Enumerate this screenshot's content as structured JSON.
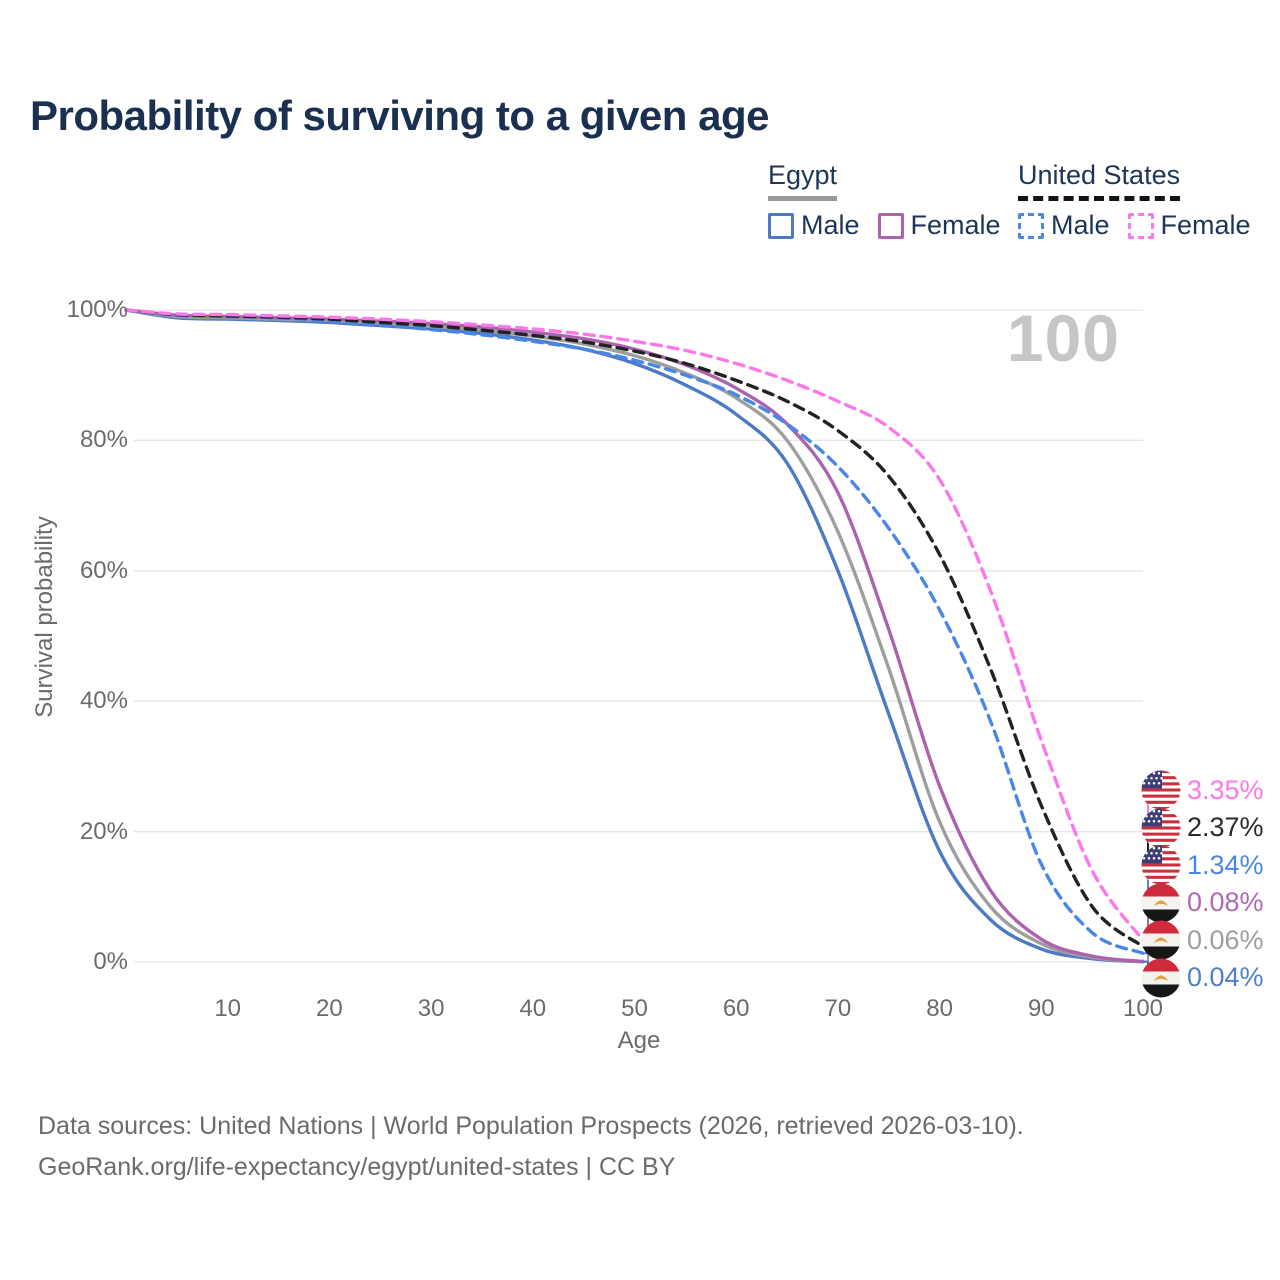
{
  "title": "Probability of surviving to a given age",
  "age_counter": "100",
  "legend": {
    "groups": [
      {
        "country": "Egypt",
        "line_style": "solid",
        "underline_color": "#9a9a9a",
        "items": [
          {
            "label": "Male",
            "color": "#4e79c4"
          },
          {
            "label": "Female",
            "color": "#ab63ad"
          }
        ]
      },
      {
        "country": "United States",
        "line_style": "dashed",
        "underline_color": "#141414",
        "items": [
          {
            "label": "Male",
            "color": "#4a86e8"
          },
          {
            "label": "Female",
            "color": "#fb78e8"
          }
        ]
      }
    ]
  },
  "axes": {
    "x_label": "Age",
    "y_label": "Survival probability",
    "x_ticks": [
      10,
      20,
      30,
      40,
      50,
      60,
      70,
      80,
      90,
      100
    ],
    "y_ticks": [
      {
        "value": 0,
        "label": "0%"
      },
      {
        "value": 20,
        "label": "20%"
      },
      {
        "value": 40,
        "label": "40%"
      },
      {
        "value": 60,
        "label": "60%"
      },
      {
        "value": 80,
        "label": "80%"
      },
      {
        "value": 100,
        "label": "100%"
      }
    ]
  },
  "chart_data": {
    "type": "line",
    "title": "Probability of surviving to a given age",
    "xlabel": "Age",
    "ylabel": "Survival probability",
    "xlim": [
      0,
      100
    ],
    "ylim": [
      0,
      100
    ],
    "grid": "horizontal",
    "legend_position": "top-right",
    "x": [
      0,
      5,
      10,
      15,
      20,
      25,
      30,
      35,
      40,
      45,
      50,
      55,
      60,
      65,
      70,
      75,
      80,
      85,
      90,
      95,
      100
    ],
    "series": [
      {
        "id": "egypt-male",
        "name": "Egypt Male",
        "country": "Egypt",
        "sex": "Male",
        "color": "#4e79c4",
        "dashed": false,
        "flag": "egypt",
        "end_label": "0.04%",
        "label_color": "#4f7fc9",
        "values": [
          100,
          98.8,
          98.6,
          98.4,
          98.1,
          97.6,
          97.1,
          96.4,
          95.4,
          94.0,
          91.8,
          88.5,
          84.0,
          76.5,
          60.0,
          38.0,
          17.0,
          6.5,
          2.0,
          0.5,
          0.04
        ]
      },
      {
        "id": "egypt-total",
        "name": "Egypt",
        "country": "Egypt",
        "sex": "Both",
        "color": "#9e9e9e",
        "dashed": false,
        "flag": "egypt",
        "end_label": "0.06%",
        "label_color": "#9e9e9e",
        "values": [
          100,
          99.0,
          98.8,
          98.6,
          98.4,
          98.0,
          97.5,
          96.9,
          96.0,
          94.8,
          93.0,
          90.3,
          86.5,
          80.0,
          66.0,
          45.0,
          21.5,
          8.5,
          2.8,
          0.7,
          0.06
        ]
      },
      {
        "id": "egypt-female",
        "name": "Egypt Female",
        "country": "Egypt",
        "sex": "Female",
        "color": "#ab63ad",
        "dashed": false,
        "flag": "egypt",
        "end_label": "0.08%",
        "label_color": "#b06ab5",
        "values": [
          100,
          99.2,
          99.0,
          98.8,
          98.6,
          98.3,
          97.9,
          97.4,
          96.6,
          95.6,
          94.0,
          91.6,
          88.0,
          82.5,
          72.0,
          51.0,
          27.0,
          11.0,
          3.5,
          0.9,
          0.08
        ]
      },
      {
        "id": "us-male",
        "name": "United States Male",
        "country": "United States",
        "sex": "Male",
        "color": "#4a86e8",
        "dashed": true,
        "flag": "us",
        "end_label": "1.34%",
        "label_color": "#4a86e8",
        "values": [
          100,
          99.2,
          99.0,
          98.8,
          98.3,
          97.7,
          97.0,
          96.2,
          95.2,
          94.0,
          92.3,
          90.0,
          87.0,
          82.5,
          76.0,
          66.5,
          54.0,
          37.0,
          15.0,
          4.5,
          1.34
        ]
      },
      {
        "id": "us-total",
        "name": "United States",
        "country": "United States",
        "sex": "Both",
        "color": "#222222",
        "dashed": true,
        "flag": "us",
        "end_label": "2.37%",
        "label_color": "#2b2b2b",
        "values": [
          100,
          99.3,
          99.1,
          98.9,
          98.6,
          98.1,
          97.6,
          96.9,
          96.1,
          95.1,
          93.7,
          91.8,
          89.2,
          86.0,
          81.5,
          74.5,
          62.5,
          45.0,
          24.0,
          8.5,
          2.37
        ]
      },
      {
        "id": "us-female",
        "name": "United States Female",
        "country": "United States",
        "sex": "Female",
        "color": "#fb78e8",
        "dashed": true,
        "flag": "us",
        "end_label": "3.35%",
        "label_color": "#fb78e8",
        "values": [
          100,
          99.4,
          99.3,
          99.1,
          98.9,
          98.6,
          98.2,
          97.7,
          97.1,
          96.3,
          95.2,
          93.8,
          91.8,
          89.2,
          86.0,
          82.0,
          74.0,
          57.0,
          34.0,
          14.0,
          3.35
        ]
      }
    ]
  },
  "footer": {
    "line1": "Data sources: United Nations | World Population Prospects (2026, retrieved 2026-03-10).",
    "line2": "GeoRank.org/life-expectancy/egypt/united-states | CC BY"
  }
}
